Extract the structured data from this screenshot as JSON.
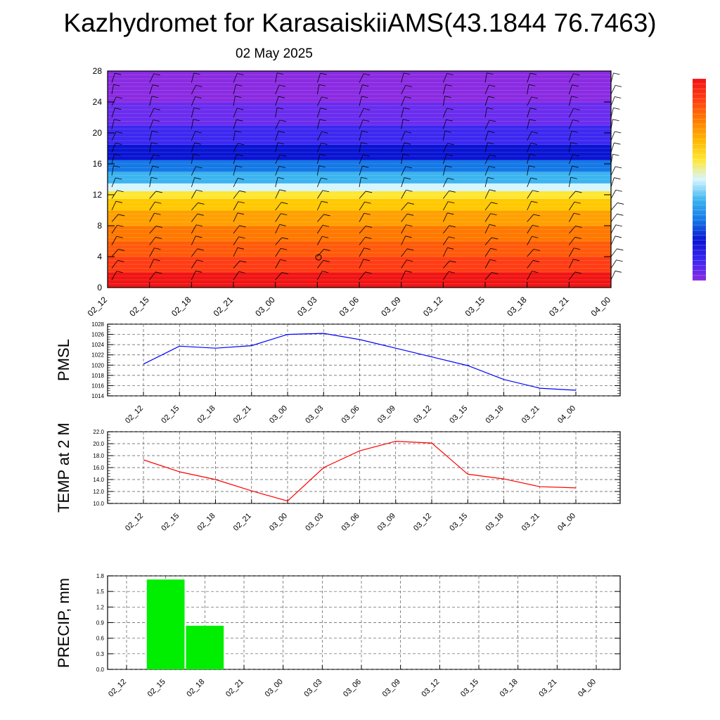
{
  "title": "Kazhydromet for KarasaiskiiAMS(43.1844 76.7463)",
  "date": "02 May 2025",
  "colors": {
    "pmsl_line": "#0000ff",
    "temp_line": "#ff0000",
    "precip_bar": "#00ee00",
    "colormap": [
      "#8a2be2",
      "#3c28f0",
      "#0a14d2",
      "#1478e6",
      "#3cb4f0",
      "#d7f5ff",
      "#ffe632",
      "#ffb400",
      "#ff7800",
      "#ff3c14",
      "#f01414"
    ]
  },
  "chart_data": [
    {
      "type": "heatmap",
      "ylim": [
        0,
        28
      ],
      "yticks": [
        "0",
        "4",
        "8",
        "12",
        "16",
        "20",
        "24",
        "28"
      ],
      "categories": [
        "02_12",
        "02_15",
        "02_18",
        "02_21",
        "03_00",
        "03_03",
        "03_06",
        "03_09",
        "03_12",
        "03_15",
        "03_18",
        "03_21",
        "04_00"
      ],
      "bands": [
        {
          "from": 0,
          "to": 2,
          "color": "#f01414"
        },
        {
          "from": 2,
          "to": 4,
          "color": "#ff3c14"
        },
        {
          "from": 4,
          "to": 6,
          "color": "#ff5a0a"
        },
        {
          "from": 6,
          "to": 8,
          "color": "#ff7800"
        },
        {
          "from": 8,
          "to": 10,
          "color": "#ffa000"
        },
        {
          "from": 10,
          "to": 11.5,
          "color": "#ffc800"
        },
        {
          "from": 11.5,
          "to": 12.5,
          "color": "#ffe632"
        },
        {
          "from": 12.5,
          "to": 13.5,
          "color": "#d7f5ff"
        },
        {
          "from": 13.5,
          "to": 15,
          "color": "#3cb4f0"
        },
        {
          "from": 15,
          "to": 16.5,
          "color": "#1478e6"
        },
        {
          "from": 16.5,
          "to": 18.5,
          "color": "#0a14d2"
        },
        {
          "from": 18.5,
          "to": 21,
          "color": "#3c28f0"
        },
        {
          "from": 21,
          "to": 24,
          "color": "#6a2cee"
        },
        {
          "from": 24,
          "to": 28,
          "color": "#8a2be2"
        }
      ]
    },
    {
      "type": "line",
      "ylabel": "PMSL",
      "ylim": [
        1014,
        1028
      ],
      "yticks": [
        "1014",
        "1016",
        "1018",
        "1020",
        "1022",
        "1024",
        "1026",
        "1028"
      ],
      "categories": [
        "02_12",
        "02_15",
        "02_18",
        "02_21",
        "03_00",
        "03_03",
        "03_06",
        "03_09",
        "03_12",
        "03_15",
        "03_18",
        "03_21",
        "04_00"
      ],
      "series": [
        {
          "values": [
            1020.2,
            1023.7,
            1023.3,
            1023.8,
            1026.0,
            1026.2,
            1025.0,
            1023.3,
            1021.6,
            1019.9,
            1017.2,
            1015.5,
            1015.1
          ]
        }
      ]
    },
    {
      "type": "line",
      "ylabel": "TEMP at 2 M",
      "ylim": [
        10.0,
        22.0
      ],
      "yticks": [
        "10.0",
        "12.0",
        "14.0",
        "16.0",
        "18.0",
        "20.0",
        "22.0"
      ],
      "categories": [
        "02_12",
        "02_15",
        "02_18",
        "02_21",
        "03_00",
        "03_03",
        "03_06",
        "03_09",
        "03_12",
        "03_15",
        "03_18",
        "03_21",
        "04_00"
      ],
      "series": [
        {
          "values": [
            17.3,
            15.3,
            14.0,
            12.1,
            10.4,
            16.0,
            18.8,
            20.4,
            20.1,
            14.9,
            14.1,
            12.8,
            12.6
          ]
        }
      ]
    },
    {
      "type": "bar",
      "ylabel": "PRECIP, mm",
      "ylim": [
        0.0,
        1.8
      ],
      "yticks": [
        "0.0",
        "0.3",
        "0.6",
        "0.9",
        "1.2",
        "1.5",
        "1.8"
      ],
      "categories": [
        "02_12",
        "02_15",
        "02_18",
        "02_21",
        "03_00",
        "03_03",
        "03_06",
        "03_09",
        "03_12",
        "03_15",
        "03_18",
        "03_21",
        "04_00"
      ],
      "values": [
        0,
        1.73,
        0.84,
        0,
        0,
        0,
        0,
        0,
        0,
        0,
        0,
        0,
        0
      ]
    }
  ]
}
